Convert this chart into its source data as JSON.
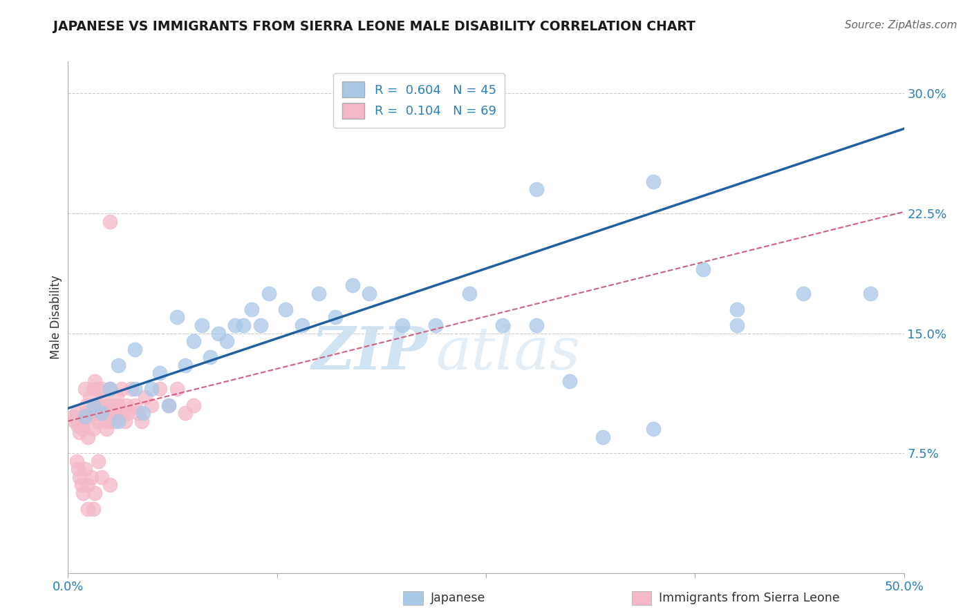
{
  "title": "JAPANESE VS IMMIGRANTS FROM SIERRA LEONE MALE DISABILITY CORRELATION CHART",
  "source": "Source: ZipAtlas.com",
  "ylabel": "Male Disability",
  "xlim": [
    0.0,
    0.5
  ],
  "ylim": [
    0.0,
    0.32
  ],
  "xtick_vals": [
    0.0,
    0.125,
    0.25,
    0.375,
    0.5
  ],
  "xtick_labels": [
    "0.0%",
    "",
    "",
    "",
    "50.0%"
  ],
  "ytick_vals": [
    0.075,
    0.15,
    0.225,
    0.3
  ],
  "ytick_labels": [
    "7.5%",
    "15.0%",
    "22.5%",
    "30.0%"
  ],
  "legend_line1": "R =  0.604   N = 45",
  "legend_line2": "R =  0.104   N = 69",
  "blue_scatter": "#a8c8e8",
  "pink_scatter": "#f4b8c8",
  "line_blue": "#2060a0",
  "line_pink": "#d06080",
  "watermark_text": "ZIPatlas",
  "watermark_color": "#ddeeff",
  "bg_color": "#ffffff",
  "grid_color": "#cccccc",
  "axis_color": "#aaaaaa",
  "text_color": "#333333",
  "tick_color": "#2980b9",
  "japanese_x": [
    0.01,
    0.015,
    0.02,
    0.025,
    0.03,
    0.03,
    0.04,
    0.04,
    0.045,
    0.05,
    0.055,
    0.06,
    0.065,
    0.07,
    0.075,
    0.08,
    0.085,
    0.09,
    0.095,
    0.1,
    0.105,
    0.11,
    0.115,
    0.12,
    0.13,
    0.14,
    0.15,
    0.16,
    0.17,
    0.18,
    0.2,
    0.22,
    0.24,
    0.26,
    0.28,
    0.3,
    0.32,
    0.35,
    0.38,
    0.4,
    0.28,
    0.35,
    0.4,
    0.44,
    0.48
  ],
  "japanese_y": [
    0.098,
    0.105,
    0.1,
    0.115,
    0.095,
    0.13,
    0.115,
    0.14,
    0.1,
    0.115,
    0.125,
    0.105,
    0.16,
    0.13,
    0.145,
    0.155,
    0.135,
    0.15,
    0.145,
    0.155,
    0.155,
    0.165,
    0.155,
    0.175,
    0.165,
    0.155,
    0.175,
    0.16,
    0.18,
    0.175,
    0.155,
    0.155,
    0.175,
    0.155,
    0.155,
    0.12,
    0.085,
    0.09,
    0.19,
    0.165,
    0.24,
    0.245,
    0.155,
    0.175,
    0.175
  ],
  "sierra_leone_x": [
    0.003,
    0.004,
    0.005,
    0.006,
    0.007,
    0.008,
    0.009,
    0.01,
    0.01,
    0.011,
    0.012,
    0.012,
    0.013,
    0.013,
    0.014,
    0.015,
    0.015,
    0.016,
    0.016,
    0.017,
    0.018,
    0.018,
    0.019,
    0.02,
    0.02,
    0.021,
    0.022,
    0.023,
    0.024,
    0.025,
    0.025,
    0.026,
    0.027,
    0.028,
    0.028,
    0.029,
    0.03,
    0.031,
    0.032,
    0.033,
    0.034,
    0.035,
    0.036,
    0.038,
    0.04,
    0.042,
    0.044,
    0.046,
    0.05,
    0.055,
    0.06,
    0.065,
    0.07,
    0.075,
    0.005,
    0.006,
    0.007,
    0.008,
    0.009,
    0.01,
    0.012,
    0.014,
    0.016,
    0.018,
    0.02,
    0.025,
    0.012,
    0.015,
    0.025
  ],
  "sierra_leone_y": [
    0.098,
    0.095,
    0.1,
    0.092,
    0.088,
    0.095,
    0.09,
    0.1,
    0.115,
    0.105,
    0.1,
    0.085,
    0.11,
    0.098,
    0.1,
    0.115,
    0.09,
    0.105,
    0.12,
    0.1,
    0.095,
    0.115,
    0.105,
    0.115,
    0.1,
    0.108,
    0.095,
    0.09,
    0.105,
    0.095,
    0.115,
    0.1,
    0.1,
    0.105,
    0.095,
    0.11,
    0.105,
    0.1,
    0.115,
    0.1,
    0.095,
    0.105,
    0.1,
    0.115,
    0.105,
    0.1,
    0.095,
    0.11,
    0.105,
    0.115,
    0.105,
    0.115,
    0.1,
    0.105,
    0.07,
    0.065,
    0.06,
    0.055,
    0.05,
    0.065,
    0.055,
    0.06,
    0.05,
    0.07,
    0.06,
    0.055,
    0.04,
    0.04,
    0.22
  ],
  "blue_line_x0": 0.0,
  "blue_line_y0": 0.103,
  "blue_line_x1": 0.5,
  "blue_line_y1": 0.278,
  "pink_line_x0": 0.0,
  "pink_line_y0": 0.095,
  "pink_line_x1": 0.5,
  "pink_line_y1": 0.226
}
